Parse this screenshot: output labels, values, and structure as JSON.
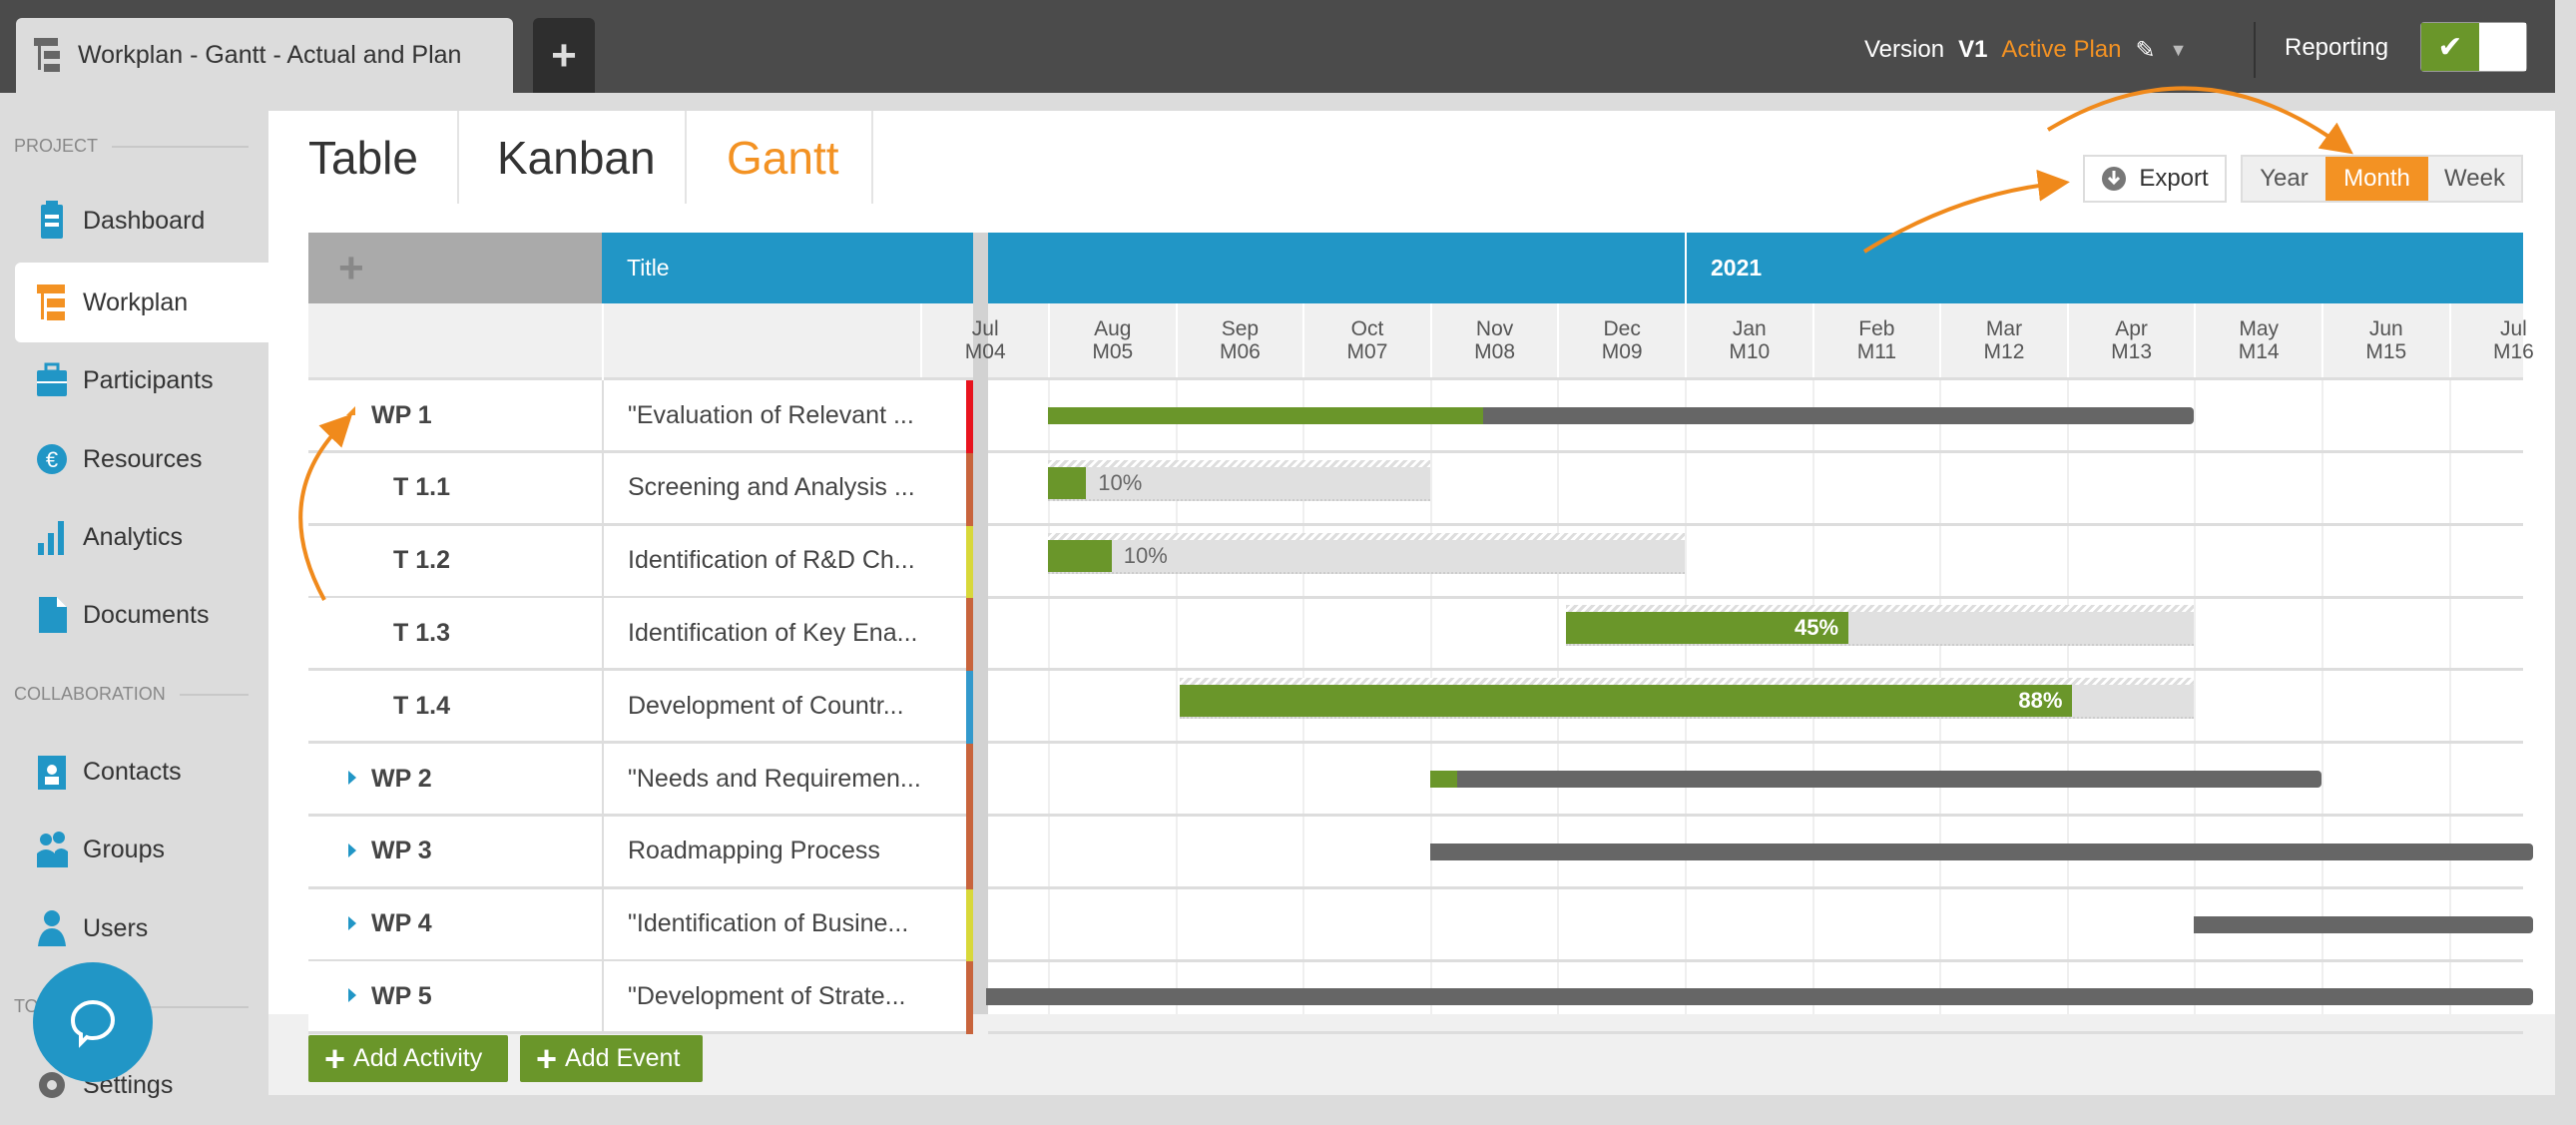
{
  "topbar": {
    "document_tab": "Workplan - Gantt - Actual and Plan",
    "new_tab": "+",
    "version_label": "Version",
    "version": "V1",
    "plan": "Active Plan",
    "reporting_label": "Reporting",
    "reporting_enabled": true
  },
  "sidebar": {
    "sections": [
      {
        "label": "PROJECT"
      },
      {
        "label": "COLLABORATION"
      },
      {
        "label": "TOOLS"
      }
    ],
    "items": [
      {
        "label": "Dashboard",
        "icon": "dashboard-icon"
      },
      {
        "label": "Workplan",
        "icon": "workplan-icon",
        "active": true
      },
      {
        "label": "Participants",
        "icon": "briefcase-icon"
      },
      {
        "label": "Resources",
        "icon": "euro-icon"
      },
      {
        "label": "Analytics",
        "icon": "bar-chart-icon"
      },
      {
        "label": "Documents",
        "icon": "document-icon"
      },
      {
        "label": "Contacts",
        "icon": "contact-card-icon"
      },
      {
        "label": "Groups",
        "icon": "group-icon"
      },
      {
        "label": "Users",
        "icon": "user-icon"
      },
      {
        "label": "Settings",
        "icon": "gear-icon"
      }
    ]
  },
  "view_tabs": [
    {
      "label": "Table"
    },
    {
      "label": "Kanban"
    },
    {
      "label": "Gantt",
      "active": true
    }
  ],
  "toolbar": {
    "export": "Export",
    "scales": [
      "Year",
      "Month",
      "Week"
    ],
    "selected_scale": "Month"
  },
  "grid": {
    "add": "+",
    "title_header": "Title",
    "year": "2021",
    "months": [
      [
        "Jul",
        "M04"
      ],
      [
        "Aug",
        "M05"
      ],
      [
        "Sep",
        "M06"
      ],
      [
        "Oct",
        "M07"
      ],
      [
        "Nov",
        "M08"
      ],
      [
        "Dec",
        "M09"
      ],
      [
        "Jan",
        "M10"
      ],
      [
        "Feb",
        "M11"
      ],
      [
        "Mar",
        "M12"
      ],
      [
        "Apr",
        "M13"
      ],
      [
        "May",
        "M14"
      ],
      [
        "Jun",
        "M15"
      ],
      [
        "Jul",
        "M16"
      ]
    ],
    "rows": [
      {
        "code": "WP 1",
        "title": "\"Evaluation of Relevant ...",
        "type": "wp",
        "expanded": true,
        "color": "#e8141e",
        "start": "2020-08-01",
        "end": "2021-04-30",
        "progress": 38
      },
      {
        "code": "T 1.1",
        "title": "Screening and Analysis ...",
        "type": "task",
        "color": "#c8643c",
        "start": "2020-08-01",
        "end": "2020-10-31",
        "progress": 10,
        "label": "10%"
      },
      {
        "code": "T 1.2",
        "title": "Identification of R&D Ch...",
        "type": "task",
        "color": "#d8d83a",
        "start": "2020-08-01",
        "end": "2020-12-31",
        "progress": 10,
        "label": "10%"
      },
      {
        "code": "T 1.3",
        "title": "Identification of Key Ena...",
        "type": "task",
        "color": "#c8643c",
        "start": "2020-12-03",
        "end": "2021-04-30",
        "progress": 45,
        "label": "45%"
      },
      {
        "code": "T 1.4",
        "title": "Development of Countr...",
        "type": "task",
        "color": "#3399cc",
        "start": "2020-09-02",
        "end": "2021-04-30",
        "progress": 88,
        "label": "88%"
      },
      {
        "code": "WP 2",
        "title": "\"Needs and Requiremen...",
        "type": "wp",
        "color": "#c8643c",
        "start": "2020-11-01",
        "end": "2021-05-31",
        "progress": 3
      },
      {
        "code": "WP 3",
        "title": "Roadmapping Process",
        "type": "wp",
        "color": "#c8643c",
        "start": "2020-11-01",
        "end": null,
        "progress": 0
      },
      {
        "code": "WP 4",
        "title": "\"Identification of Busine...",
        "type": "wp",
        "color": "#d8d83a",
        "start": "2021-05-01",
        "end": null,
        "progress": 0
      },
      {
        "code": "WP 5",
        "title": "\"Development of Strate...",
        "type": "wp",
        "color": "#c8643c",
        "start": null,
        "end": null,
        "progress": 0
      }
    ]
  },
  "footer": {
    "add_activity": "Add Activity",
    "add_event": "Add Event"
  },
  "colors": {
    "accent": "#f39223",
    "header_blue": "#2196c6",
    "progress_green": "#6a962a",
    "plan_gray": "#666666"
  }
}
